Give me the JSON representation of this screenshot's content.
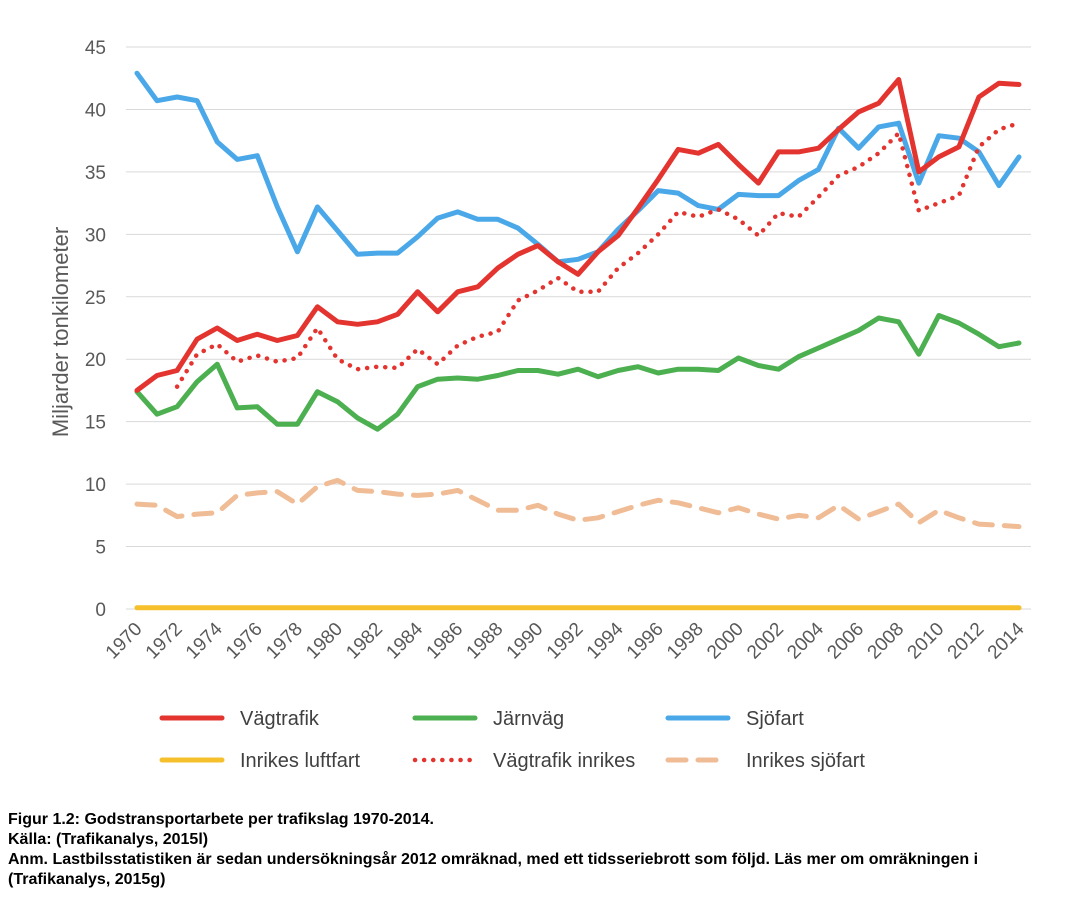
{
  "chart_data": {
    "type": "line",
    "ylabel": "Miljarder tonkilometer",
    "xlabel": "",
    "ylim": [
      0,
      45
    ],
    "yticks": [
      0,
      5,
      10,
      15,
      20,
      25,
      30,
      35,
      40,
      45
    ],
    "x": [
      1970,
      1971,
      1972,
      1973,
      1974,
      1975,
      1976,
      1977,
      1978,
      1979,
      1980,
      1981,
      1982,
      1983,
      1984,
      1985,
      1986,
      1987,
      1988,
      1989,
      1990,
      1991,
      1992,
      1993,
      1994,
      1995,
      1996,
      1997,
      1998,
      1999,
      2000,
      2001,
      2002,
      2003,
      2004,
      2005,
      2006,
      2007,
      2008,
      2009,
      2010,
      2011,
      2012,
      2013,
      2014
    ],
    "xtick_labels": [
      "1970",
      "1972",
      "1974",
      "1976",
      "1978",
      "1980",
      "1982",
      "1984",
      "1986",
      "1988",
      "1990",
      "1992",
      "1994",
      "1996",
      "1998",
      "2000",
      "2002",
      "2004",
      "2006",
      "2008",
      "2010",
      "2012",
      "2014"
    ],
    "series": [
      {
        "name": "Vägtrafik",
        "color": "#e3342f",
        "style": "solid",
        "values": [
          17.5,
          18.7,
          19.1,
          21.6,
          22.5,
          21.5,
          22.0,
          21.5,
          21.9,
          24.2,
          23.0,
          22.8,
          23.0,
          23.6,
          25.4,
          23.8,
          25.4,
          25.8,
          27.3,
          28.4,
          29.1,
          27.8,
          26.8,
          28.6,
          29.9,
          32.1,
          34.4,
          36.8,
          36.5,
          37.2,
          35.6,
          34.1,
          36.6,
          36.6,
          36.9,
          38.4,
          39.8,
          40.5,
          42.4,
          35.0,
          36.2,
          37.0,
          41.0,
          42.1,
          42.0
        ]
      },
      {
        "name": "Järnväg",
        "color": "#4caf50",
        "style": "solid",
        "values": [
          17.4,
          15.6,
          16.2,
          18.2,
          19.6,
          16.1,
          16.2,
          14.8,
          14.8,
          17.4,
          16.6,
          15.3,
          14.4,
          15.6,
          17.8,
          18.4,
          18.5,
          18.4,
          18.7,
          19.1,
          19.1,
          18.8,
          19.2,
          18.6,
          19.1,
          19.4,
          18.9,
          19.2,
          19.2,
          19.1,
          20.1,
          19.5,
          19.2,
          20.2,
          20.9,
          21.6,
          22.3,
          23.3,
          23.0,
          20.4,
          23.5,
          22.9,
          22.0,
          21.0,
          21.3
        ]
      },
      {
        "name": "Sjöfart",
        "color": "#4aa8e8",
        "style": "solid",
        "values": [
          42.9,
          40.7,
          41.0,
          40.7,
          37.4,
          36.0,
          36.3,
          32.2,
          28.6,
          32.2,
          30.3,
          28.4,
          28.5,
          28.5,
          29.8,
          31.3,
          31.8,
          31.2,
          31.2,
          30.5,
          29.2,
          27.8,
          28.0,
          28.6,
          30.4,
          31.9,
          33.5,
          33.3,
          32.3,
          32.0,
          33.2,
          33.1,
          33.1,
          34.3,
          35.2,
          38.5,
          36.9,
          38.6,
          38.9,
          34.1,
          37.9,
          37.7,
          36.6,
          33.9,
          36.2
        ]
      },
      {
        "name": "Inrikes luftfart",
        "color": "#f5c02c",
        "style": "solid",
        "values": [
          0.1,
          0.1,
          0.1,
          0.1,
          0.1,
          0.1,
          0.1,
          0.1,
          0.1,
          0.1,
          0.1,
          0.1,
          0.1,
          0.1,
          0.1,
          0.1,
          0.1,
          0.1,
          0.1,
          0.1,
          0.1,
          0.1,
          0.1,
          0.1,
          0.1,
          0.1,
          0.1,
          0.1,
          0.1,
          0.1,
          0.1,
          0.1,
          0.1,
          0.1,
          0.1,
          0.1,
          0.1,
          0.1,
          0.1,
          0.1,
          0.1,
          0.1,
          0.1,
          0.1,
          0.1
        ]
      },
      {
        "name": "Vägtrafik inrikes",
        "color": "#e3342f",
        "style": "dotted",
        "values": [
          null,
          null,
          17.8,
          20.4,
          21.2,
          19.8,
          20.3,
          19.8,
          20.1,
          22.5,
          20.0,
          19.2,
          19.4,
          19.3,
          20.8,
          19.6,
          21.1,
          21.8,
          22.2,
          24.7,
          25.5,
          26.5,
          25.4,
          25.4,
          27.3,
          28.5,
          30.0,
          31.8,
          31.4,
          32.0,
          31.2,
          29.9,
          31.7,
          31.4,
          33.0,
          34.7,
          35.4,
          36.5,
          38.1,
          31.9,
          32.5,
          33.1,
          37.0,
          38.4,
          38.9
        ]
      },
      {
        "name": "Inrikes sjöfart",
        "color": "#f0bc96",
        "style": "dashed",
        "values": [
          8.4,
          8.3,
          7.4,
          7.6,
          7.7,
          9.1,
          9.3,
          9.4,
          8.4,
          9.8,
          10.3,
          9.5,
          9.4,
          9.2,
          9.1,
          9.2,
          9.5,
          8.7,
          7.9,
          7.9,
          8.3,
          7.6,
          7.1,
          7.3,
          7.8,
          8.3,
          8.7,
          8.5,
          8.1,
          7.7,
          8.1,
          7.6,
          7.2,
          7.5,
          7.3,
          8.3,
          7.2,
          7.8,
          8.4,
          6.9,
          7.9,
          7.3,
          6.8,
          6.7,
          6.6
        ]
      }
    ],
    "legend_position": "bottom"
  },
  "caption": {
    "figure": "Figur 1.2: Godstransportarbete per trafikslag 1970-2014.",
    "source": "Källa: (Trafikanalys, 2015l)",
    "note": "Anm. Lastbilsstatistiken är sedan undersökningsår 2012 omräknad, med ett tidsseriebrott som följd. Läs mer om omräkningen i (Trafikanalys, 2015g)"
  }
}
